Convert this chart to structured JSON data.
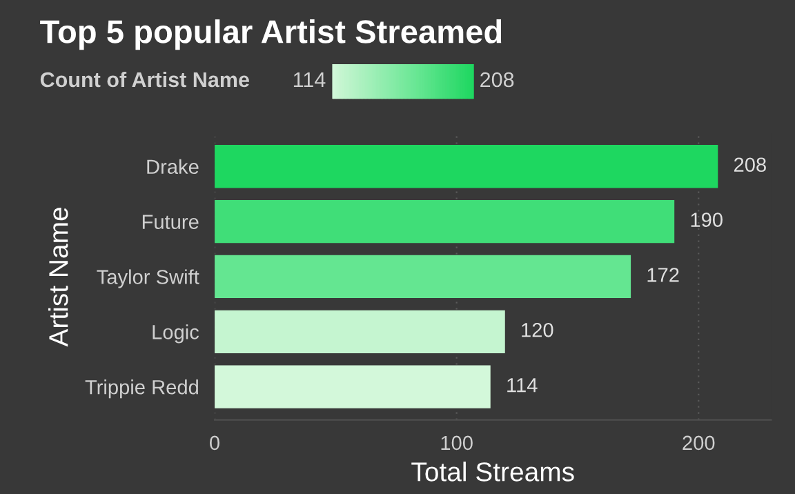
{
  "chart_data": {
    "type": "bar",
    "orientation": "horizontal",
    "title": "Top 5 popular Artist Streamed",
    "xlabel": "Total Streams",
    "ylabel": "Artist Name",
    "clabel": "Count of Artist Name",
    "categories": [
      "Drake",
      "Future",
      "Taylor Swift",
      "Logic",
      "Trippie Redd"
    ],
    "values": [
      208,
      190,
      172,
      120,
      114
    ],
    "colors": [
      "#1ed760",
      "#40de78",
      "#64e691",
      "#c5f5d0",
      "#d3f8da"
    ],
    "clim": [
      114,
      208
    ],
    "cticks": [
      114,
      208
    ],
    "xlim": [
      0,
      230
    ],
    "xticks": [
      0,
      100,
      200
    ],
    "grid": "x",
    "data_labels": true
  }
}
